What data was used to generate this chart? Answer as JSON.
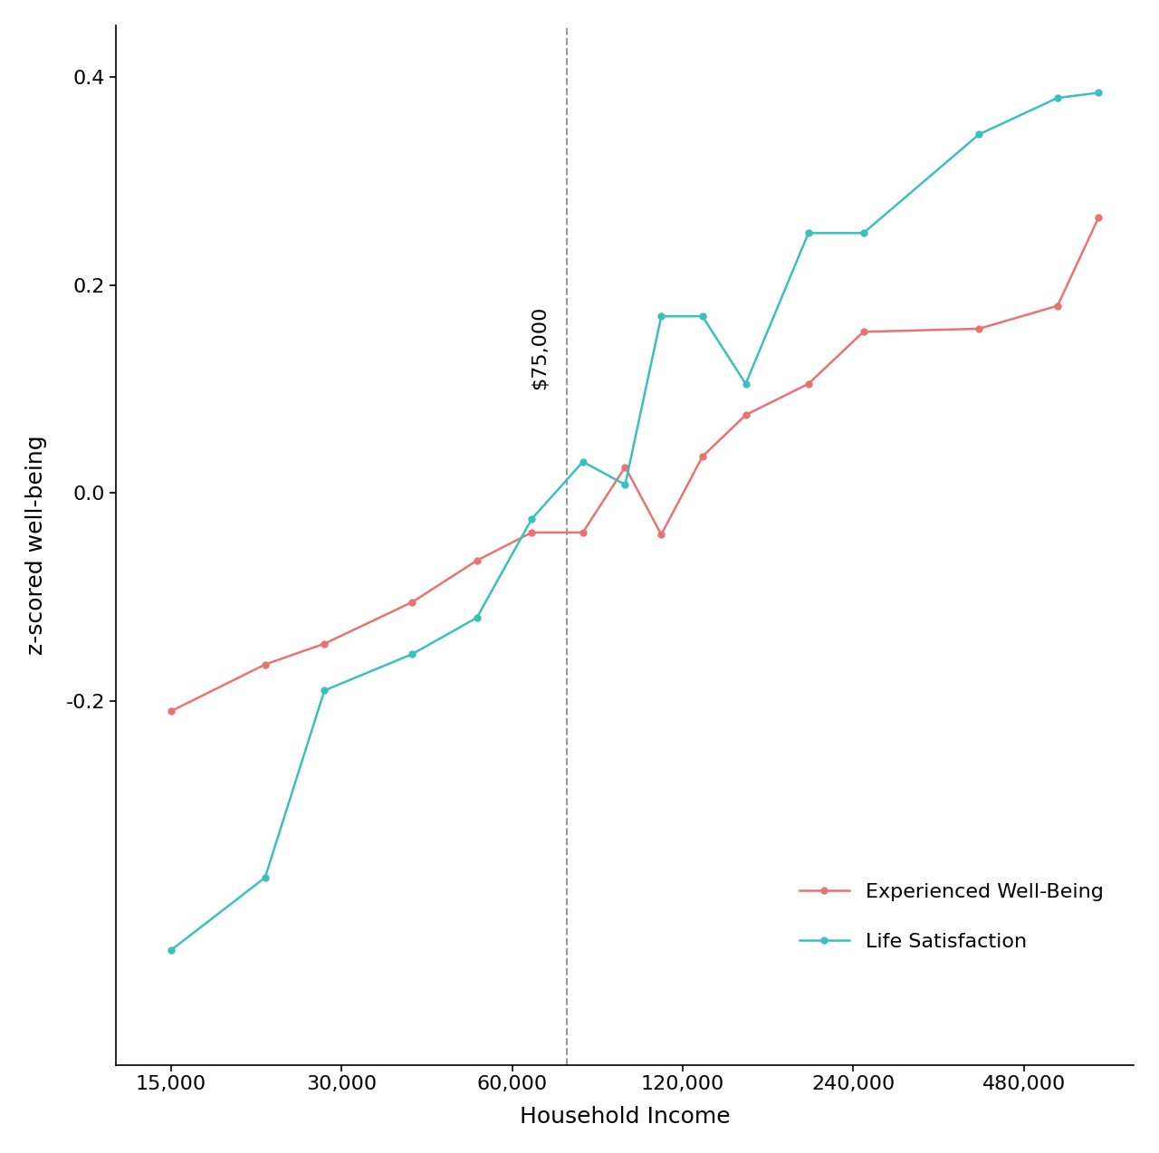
{
  "experienced_wellbeing_x": [
    15000,
    22000,
    28000,
    40000,
    52000,
    65000,
    80000,
    95000,
    110000,
    130000,
    155000,
    200000,
    250000,
    400000,
    550000,
    650000
  ],
  "experienced_wellbeing_y": [
    -0.21,
    -0.165,
    -0.145,
    -0.105,
    -0.065,
    -0.038,
    -0.038,
    0.025,
    -0.04,
    0.035,
    0.075,
    0.105,
    0.155,
    0.158,
    0.18,
    0.265
  ],
  "life_satisfaction_x": [
    15000,
    22000,
    28000,
    40000,
    52000,
    65000,
    80000,
    95000,
    110000,
    130000,
    155000,
    200000,
    250000,
    400000,
    550000,
    650000
  ],
  "life_satisfaction_y": [
    -0.44,
    -0.37,
    -0.19,
    -0.155,
    -0.12,
    -0.025,
    0.03,
    0.008,
    0.17,
    0.17,
    0.105,
    0.25,
    0.25,
    0.345,
    0.38,
    0.385
  ],
  "ewb_color": "#E87472",
  "ls_color": "#3BBFBF",
  "vline_x": 75000,
  "vline_label": "$75,000",
  "xlabel": "Household Income",
  "ylabel": "z-scored well-being",
  "xtick_positions": [
    15000,
    30000,
    60000,
    120000,
    240000,
    480000
  ],
  "xtick_labels": [
    "15,000",
    "30,000",
    "60,000",
    "120,000",
    "240,000",
    "480,000"
  ],
  "ytick_positions": [
    -0.2,
    0.0,
    0.2,
    0.4
  ],
  "ytick_labels": [
    "-0.2",
    "0.0",
    "0.2",
    "0.4"
  ],
  "ylim": [
    -0.55,
    0.45
  ],
  "xlim": [
    12000,
    750000
  ],
  "legend_ewb": "Experienced Well-Being",
  "legend_ls": "Life Satisfaction",
  "marker_size": 5,
  "line_width": 1.8
}
